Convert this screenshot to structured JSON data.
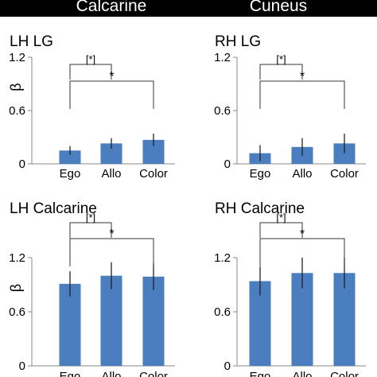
{
  "header": {
    "left_title": "Calcarine",
    "right_title": "Cuneus"
  },
  "colors": {
    "bar": "#4a7ebf",
    "header_bg": "#000000"
  },
  "chart_data": [
    {
      "type": "bar",
      "title": "LH LG",
      "ylabel": "β",
      "categories": [
        "Ego",
        "Allo",
        "Color"
      ],
      "values": [
        0.15,
        0.23,
        0.27
      ],
      "errors": [
        0.05,
        0.06,
        0.07
      ],
      "ylim": [
        0,
        1.2
      ],
      "yticks": [
        "1.2",
        "0.6",
        "0"
      ],
      "significance": [
        {
          "from": "Ego",
          "to": "Allo",
          "label": "[*]"
        },
        {
          "from": "Ego",
          "to": "Color",
          "label": "*"
        }
      ]
    },
    {
      "type": "bar",
      "title": "RH LG",
      "ylabel": "",
      "categories": [
        "Ego",
        "Allo",
        "Color"
      ],
      "values": [
        0.12,
        0.19,
        0.23
      ],
      "errors": [
        0.09,
        0.1,
        0.11
      ],
      "ylim": [
        0,
        1.2
      ],
      "yticks": [
        "1.2",
        "0.6",
        "0"
      ],
      "significance": [
        {
          "from": "Ego",
          "to": "Allo",
          "label": "[*]"
        },
        {
          "from": "Ego",
          "to": "Color",
          "label": "*"
        }
      ]
    },
    {
      "type": "bar",
      "title": "LH Calcarine",
      "ylabel": "β",
      "categories": [
        "Ego",
        "Allo",
        "Color"
      ],
      "values": [
        0.91,
        1.0,
        0.99
      ],
      "errors": [
        0.14,
        0.15,
        0.15
      ],
      "ylim": [
        0,
        1.2
      ],
      "yticks": [
        "1.2",
        "0.6",
        "0"
      ],
      "significance": [
        {
          "from": "Ego",
          "to": "Allo",
          "label": "[*]"
        },
        {
          "from": "Ego",
          "to": "Color",
          "label": "*"
        }
      ]
    },
    {
      "type": "bar",
      "title": "RH Calcarine",
      "ylabel": "",
      "categories": [
        "Ego",
        "Allo",
        "Color"
      ],
      "values": [
        0.94,
        1.03,
        1.03
      ],
      "errors": [
        0.16,
        0.17,
        0.17
      ],
      "ylim": [
        0,
        1.2
      ],
      "yticks": [
        "1.2",
        "0.6",
        "0"
      ],
      "significance": [
        {
          "from": "Ego",
          "to": "Allo",
          "label": "[*]"
        },
        {
          "from": "Ego",
          "to": "Color",
          "label": "*"
        }
      ]
    }
  ]
}
